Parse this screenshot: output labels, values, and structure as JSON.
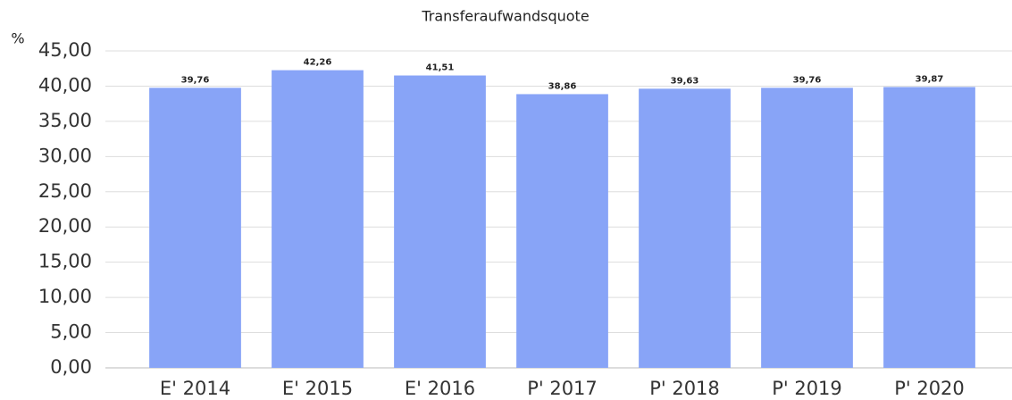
{
  "chart_data": {
    "type": "bar",
    "title": "Transferaufwandsquote",
    "y_label": "%",
    "categories": [
      "E' 2014",
      "E' 2015",
      "E' 2016",
      "P' 2017",
      "P' 2018",
      "P' 2019",
      "P' 2020"
    ],
    "values": [
      39.76,
      42.26,
      41.51,
      38.86,
      39.63,
      39.76,
      39.87
    ],
    "value_labels": [
      "39,76",
      "42,26",
      "41,51",
      "38,86",
      "39,63",
      "39,76",
      "39,87"
    ],
    "color": "#88a4f7",
    "ylim": [
      0,
      45
    ],
    "yticks": [
      {
        "value": 0,
        "label": "0,00"
      },
      {
        "value": 5,
        "label": "5,00"
      },
      {
        "value": 10,
        "label": "10,00"
      },
      {
        "value": 15,
        "label": "15,00"
      },
      {
        "value": 20,
        "label": "20,00"
      },
      {
        "value": 25,
        "label": "25,00"
      },
      {
        "value": 30,
        "label": "30,00"
      },
      {
        "value": 35,
        "label": "35,00"
      },
      {
        "value": 40,
        "label": "40,00"
      },
      {
        "value": 45,
        "label": "45,00"
      }
    ],
    "grid": true
  }
}
